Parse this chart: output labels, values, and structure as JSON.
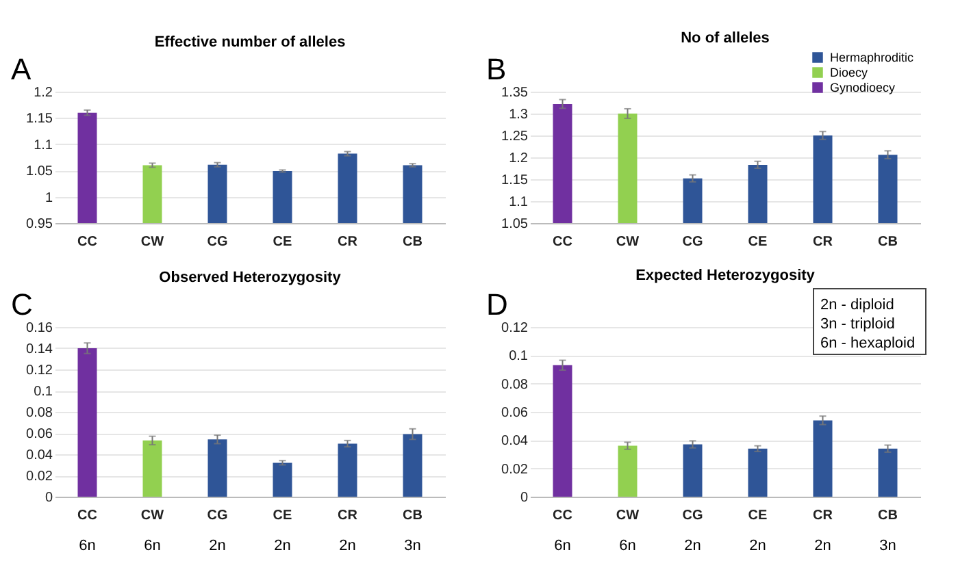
{
  "chart_data": [
    {
      "type": "bar",
      "title": "Effective number of alleles",
      "categories": [
        "CC",
        "CW",
        "CG",
        "CE",
        "CR",
        "CB"
      ],
      "values": [
        1.16,
        1.06,
        1.061,
        1.049,
        1.082,
        1.06
      ],
      "errors": [
        0.005,
        0.004,
        0.004,
        0.002,
        0.004,
        0.003
      ],
      "colors": [
        "#7030a0",
        "#92d050",
        "#2f5597",
        "#2f5597",
        "#2f5597",
        "#2f5597"
      ],
      "ylim": [
        0.95,
        1.2
      ],
      "yticks": [
        0.95,
        1,
        1.05,
        1.1,
        1.15,
        1.2
      ],
      "grid": "y",
      "annotations": [
        "A"
      ]
    },
    {
      "type": "bar",
      "title": "No of alleles",
      "categories": [
        "CC",
        "CW",
        "CG",
        "CE",
        "CR",
        "CB"
      ],
      "series": [
        {
          "name": "Hermaphroditic",
          "color": "#2f5597",
          "values": [
            null,
            null,
            1.152,
            1.183,
            1.25,
            1.206
          ],
          "errors": [
            null,
            null,
            0.008,
            0.008,
            0.009,
            0.009
          ]
        },
        {
          "name": "Dioecy",
          "color": "#92d050",
          "values": [
            null,
            1.3,
            null,
            null,
            null,
            null
          ],
          "errors": [
            null,
            0.011,
            null,
            null,
            null,
            null
          ]
        },
        {
          "name": "Gynodioecy",
          "color": "#7030a0",
          "values": [
            1.322,
            null,
            null,
            null,
            null,
            null
          ],
          "errors": [
            0.01,
            null,
            null,
            null,
            null,
            null
          ]
        }
      ],
      "ylim": [
        1.05,
        1.35
      ],
      "yticks": [
        1.05,
        1.1,
        1.15,
        1.2,
        1.25,
        1.3,
        1.35
      ],
      "grid": "y",
      "legend": "top right",
      "annotations": [
        "B"
      ]
    },
    {
      "type": "bar",
      "title": "Observed Heterozygosity",
      "categories": [
        "CC",
        "CW",
        "CG",
        "CE",
        "CR",
        "CB"
      ],
      "values": [
        0.14,
        0.053,
        0.054,
        0.032,
        0.05,
        0.059
      ],
      "errors": [
        0.005,
        0.004,
        0.004,
        0.002,
        0.003,
        0.005
      ],
      "colors": [
        "#7030a0",
        "#92d050",
        "#2f5597",
        "#2f5597",
        "#2f5597",
        "#2f5597"
      ],
      "ylim": [
        0,
        0.16
      ],
      "yticks": [
        0,
        0.02,
        0.04,
        0.06,
        0.08,
        0.1,
        0.12,
        0.14,
        0.16
      ],
      "grid": "y",
      "annotations": [
        "C",
        "6n",
        "6n",
        "2n",
        "2n",
        "2n",
        "3n"
      ]
    },
    {
      "type": "bar",
      "title": "Expected Heterozygosity",
      "categories": [
        "CC",
        "CW",
        "CG",
        "CE",
        "CR",
        "CB"
      ],
      "values": [
        0.093,
        0.036,
        0.037,
        0.034,
        0.054,
        0.034
      ],
      "errors": [
        0.0035,
        0.0025,
        0.0025,
        0.002,
        0.003,
        0.0025
      ],
      "colors": [
        "#7030a0",
        "#92d050",
        "#2f5597",
        "#2f5597",
        "#2f5597",
        "#2f5597"
      ],
      "ylim": [
        0,
        0.12
      ],
      "yticks": [
        0,
        0.02,
        0.04,
        0.06,
        0.08,
        0.1,
        0.12
      ],
      "grid": "y",
      "annotations": [
        "D",
        "2n - diploid",
        "3n - triploid",
        "6n - hexaploid",
        "6n",
        "6n",
        "2n",
        "2n",
        "2n",
        "3n"
      ]
    }
  ]
}
